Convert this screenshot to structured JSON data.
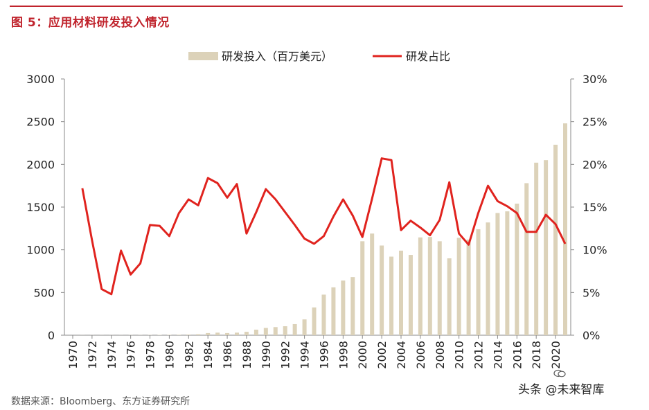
{
  "figure": {
    "title": "图 5：应用材料研发投入情况",
    "source": "数据来源：Bloomberg、东方证券研究所",
    "watermark": "头条 @未来智库"
  },
  "chart_data": {
    "type": "bar+line",
    "title": "图 5：应用材料研发投入情况",
    "legend": [
      "研发投入（百万美元）",
      "研发占比"
    ],
    "legend_position": "top-center",
    "colors": {
      "bar": "#dcd2b9",
      "line": "#e0231e",
      "axis": "#888888"
    },
    "x_tick_labels": [
      "1970",
      "1972",
      "1974",
      "1976",
      "1978",
      "1980",
      "1982",
      "1984",
      "1986",
      "1988",
      "1990",
      "1992",
      "1994",
      "1996",
      "1998",
      "2000",
      "2002",
      "2004",
      "2006",
      "2008",
      "2010",
      "2012",
      "2014",
      "2016",
      "2018",
      "2020"
    ],
    "y_left": {
      "min": 0,
      "max": 3000,
      "ticks": [
        "0",
        "500",
        "1000",
        "1500",
        "2000",
        "2500",
        "3000"
      ]
    },
    "y_right": {
      "min": 0,
      "max": 30,
      "ticks": [
        "0%",
        "5%",
        "10%",
        "15%",
        "20%",
        "25%",
        "30%"
      ]
    },
    "series": [
      {
        "name": "研发投入（百万美元）",
        "type": "bar",
        "axis": "left",
        "x": [
          1970,
          1971,
          1972,
          1973,
          1974,
          1975,
          1976,
          1977,
          1978,
          1979,
          1980,
          1981,
          1982,
          1983,
          1984,
          1985,
          1986,
          1987,
          1988,
          1989,
          1990,
          1991,
          1992,
          1993,
          1994,
          1995,
          1996,
          1997,
          1998,
          1999,
          2000,
          2001,
          2002,
          2003,
          2004,
          2005,
          2006,
          2007,
          2008,
          2009,
          2010,
          2011,
          2012,
          2013,
          2014,
          2015,
          2016,
          2017,
          2018,
          2019,
          2020,
          2021
        ],
        "values": [
          0,
          1,
          1,
          1,
          1,
          1,
          2,
          2,
          3,
          4,
          5,
          6,
          8,
          12,
          25,
          30,
          25,
          30,
          40,
          65,
          85,
          95,
          105,
          130,
          185,
          325,
          475,
          560,
          640,
          680,
          1100,
          1190,
          1050,
          920,
          990,
          940,
          1145,
          1150,
          1100,
          900,
          1140,
          1120,
          1240,
          1320,
          1430,
          1450,
          1540,
          1780,
          2020,
          2050,
          2230,
          2480
        ]
      },
      {
        "name": "研发占比",
        "type": "line",
        "axis": "right",
        "x": [
          1971,
          1972,
          1973,
          1974,
          1975,
          1976,
          1977,
          1978,
          1979,
          1980,
          1981,
          1982,
          1983,
          1984,
          1985,
          1986,
          1987,
          1988,
          1989,
          1990,
          1991,
          1992,
          1993,
          1994,
          1995,
          1996,
          1997,
          1998,
          1999,
          2000,
          2001,
          2002,
          2003,
          2004,
          2005,
          2006,
          2007,
          2008,
          2009,
          2010,
          2011,
          2012,
          2013,
          2014,
          2015,
          2016,
          2017,
          2018,
          2019,
          2020,
          2021
        ],
        "values": [
          17.2,
          11.1,
          5.4,
          4.8,
          9.9,
          7.1,
          8.4,
          12.9,
          12.8,
          11.6,
          14.3,
          15.9,
          15.2,
          18.4,
          17.8,
          16.1,
          17.7,
          11.9,
          14.4,
          17.1,
          15.9,
          14.4,
          12.9,
          11.3,
          10.7,
          11.6,
          13.9,
          15.9,
          14.0,
          11.5,
          16.0,
          20.7,
          20.5,
          12.3,
          13.4,
          12.6,
          11.7,
          13.5,
          17.9,
          11.9,
          10.6,
          14.3,
          17.5,
          15.7,
          15.1,
          14.3,
          12.1,
          12.1,
          14.1,
          13.0,
          10.7
        ]
      }
    ]
  }
}
